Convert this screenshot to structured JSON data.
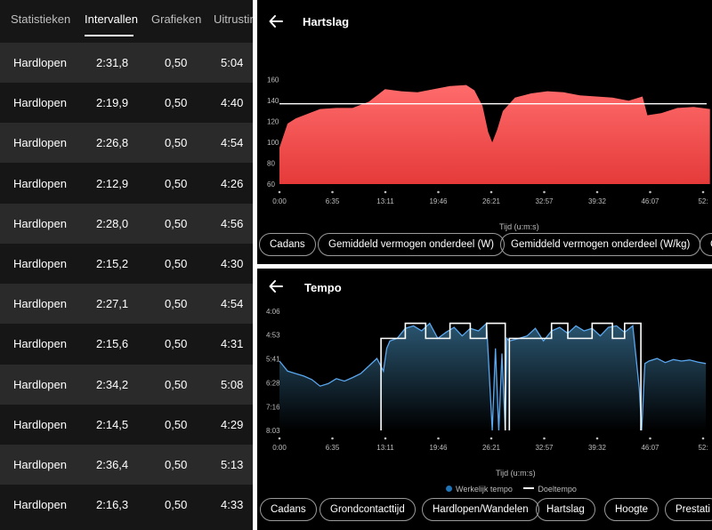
{
  "left_panel": {
    "tabs": [
      {
        "label": "Statistieken",
        "active": false
      },
      {
        "label": "Intervallen",
        "active": true
      },
      {
        "label": "Grafieken",
        "active": false
      },
      {
        "label": "Uitrustin",
        "active": false
      }
    ],
    "rows": [
      {
        "activity": "Hardlopen",
        "time": "2:31,8",
        "distance": "0,50",
        "pace": "5:04"
      },
      {
        "activity": "Hardlopen",
        "time": "2:19,9",
        "distance": "0,50",
        "pace": "4:40"
      },
      {
        "activity": "Hardlopen",
        "time": "2:26,8",
        "distance": "0,50",
        "pace": "4:54"
      },
      {
        "activity": "Hardlopen",
        "time": "2:12,9",
        "distance": "0,50",
        "pace": "4:26"
      },
      {
        "activity": "Hardlopen",
        "time": "2:28,0",
        "distance": "0,50",
        "pace": "4:56"
      },
      {
        "activity": "Hardlopen",
        "time": "2:15,2",
        "distance": "0,50",
        "pace": "4:30"
      },
      {
        "activity": "Hardlopen",
        "time": "2:27,1",
        "distance": "0,50",
        "pace": "4:54"
      },
      {
        "activity": "Hardlopen",
        "time": "2:15,6",
        "distance": "0,50",
        "pace": "4:31"
      },
      {
        "activity": "Hardlopen",
        "time": "2:34,2",
        "distance": "0,50",
        "pace": "5:08"
      },
      {
        "activity": "Hardlopen",
        "time": "2:14,5",
        "distance": "0,50",
        "pace": "4:29"
      },
      {
        "activity": "Hardlopen",
        "time": "2:36,4",
        "distance": "0,50",
        "pace": "5:13"
      },
      {
        "activity": "Hardlopen",
        "time": "2:16,3",
        "distance": "0,50",
        "pace": "4:33"
      }
    ]
  },
  "heart_panel": {
    "title": "Hartslag",
    "chips": [
      "Cadans",
      "Gemiddeld vermogen onderdeel (W)",
      "Gemiddeld vermogen onderdeel (W/kg)",
      "G"
    ]
  },
  "tempo_panel": {
    "title": "Tempo",
    "chips": [
      "Cadans",
      "Grondcontacttijd",
      "Hardlopen/Wandelen",
      "Hartslag",
      "Hoogte",
      "Prestati"
    ]
  },
  "colors": {
    "heart_fill": "#e53a3a",
    "heart_top": "#ff6b6b",
    "pace_line": "#5aa7ef",
    "target_line": "#ffffff",
    "row_alt": "#2a2a2a",
    "row_base": "#161616"
  },
  "chart_data": [
    {
      "type": "area",
      "xlabel": "Tijd (u:m:s)",
      "ylabel": "",
      "x_ticks": [
        "0:00",
        "6:35",
        "13:11",
        "19:46",
        "26:21",
        "32:57",
        "39:32",
        "46:07",
        "52:"
      ],
      "y_ticks": [
        "60",
        "80",
        "100",
        "120",
        "140",
        "160"
      ],
      "ylim": [
        60,
        170
      ],
      "reference_line": 137,
      "x_minutes": [
        0,
        1,
        2,
        3,
        5,
        7,
        9,
        11,
        13,
        15,
        17,
        19,
        21,
        23,
        24,
        25,
        25.7,
        26.2,
        26.8,
        27.5,
        29,
        31,
        33,
        35,
        37,
        39,
        41,
        43,
        44.7,
        45.3,
        47,
        49,
        51,
        53
      ],
      "series": [
        {
          "values": [
            95,
            118,
            123,
            126,
            132,
            133,
            133,
            139,
            151,
            149,
            148,
            151,
            154,
            155,
            150,
            135,
            110,
            100,
            112,
            130,
            143,
            147,
            149,
            148,
            145,
            144,
            143,
            140,
            144,
            126,
            128,
            133,
            134,
            132
          ]
        }
      ]
    },
    {
      "type": "line",
      "xlabel": "Tijd (u:m:s)",
      "ylabel": "",
      "x_ticks": [
        "0:00",
        "6:35",
        "13:11",
        "19:46",
        "26:21",
        "32:57",
        "39:32",
        "46:07",
        "52:"
      ],
      "y_ticks": [
        "4:06",
        "4:53",
        "5:41",
        "6:28",
        "7:16",
        "8:03"
      ],
      "y_reversed": true,
      "legend": [
        "Werkelijk tempo",
        "Doeltempo"
      ],
      "series": [
        {
          "name": "Werkelijk tempo",
          "x_minutes": [
            0,
            1,
            2,
            3,
            4,
            5,
            6,
            7,
            8,
            9,
            10,
            11,
            12,
            12.8,
            13.2,
            13.6,
            14.5,
            15.5,
            16.5,
            17.5,
            18.5,
            19.5,
            20.5,
            21.5,
            22.5,
            23.5,
            24.5,
            25.5,
            26.2,
            26.6,
            27,
            27.4,
            27.8,
            28,
            28.3,
            29.5,
            30.5,
            31.5,
            32.5,
            33.5,
            34.5,
            35.5,
            36.5,
            37.5,
            38.5,
            39.5,
            40.5,
            41.5,
            42.5,
            43.5,
            44.3,
            44.6,
            45,
            45.5,
            46.5,
            47.5,
            48.5,
            49.5,
            50.5,
            51.5,
            52.5
          ],
          "values": [
            "5:45",
            "6:05",
            "6:10",
            "6:15",
            "6:22",
            "6:35",
            "6:30",
            "6:20",
            "6:25",
            "6:18",
            "6:10",
            "5:55",
            "5:40",
            "6:05",
            "5:20",
            "5:05",
            "5:00",
            "4:40",
            "4:35",
            "4:45",
            "4:30",
            "5:00",
            "4:48",
            "4:38",
            "4:55",
            "4:40",
            "4:45",
            "4:30",
            "8:03",
            "5:20",
            "8:03",
            "5:30",
            "8:03",
            "5:00",
            "5:05",
            "5:00",
            "4:55",
            "4:40",
            "5:05",
            "4:45",
            "4:38",
            "4:50",
            "4:35",
            "4:45",
            "4:40",
            "4:55",
            "4:38",
            "4:35",
            "4:48",
            "4:35",
            "6:40",
            "8:03",
            "5:50",
            "5:45",
            "5:40",
            "5:48",
            "5:42",
            "5:45",
            "5:43",
            "5:47",
            "5:50"
          ]
        },
        {
          "name": "Doeltempo",
          "steps": [
            {
              "from": 0,
              "to": 12.5,
              "value": null
            },
            {
              "from": 12.5,
              "to": 15.5,
              "value": "5:00"
            },
            {
              "from": 15.5,
              "to": 18,
              "value": "4:30"
            },
            {
              "from": 18,
              "to": 21,
              "value": "5:00"
            },
            {
              "from": 21,
              "to": 23.5,
              "value": "4:30"
            },
            {
              "from": 23.5,
              "to": 25.5,
              "value": "5:00"
            },
            {
              "from": 25.5,
              "to": 27.8,
              "value": "4:30"
            },
            {
              "from": 27.8,
              "to": 28.3,
              "value": null
            },
            {
              "from": 28.3,
              "to": 33.5,
              "value": "5:00"
            },
            {
              "from": 33.5,
              "to": 35.5,
              "value": "4:30"
            },
            {
              "from": 35.5,
              "to": 38.5,
              "value": "5:00"
            },
            {
              "from": 38.5,
              "to": 41,
              "value": "4:30"
            },
            {
              "from": 41,
              "to": 42.5,
              "value": "5:00"
            },
            {
              "from": 42.5,
              "to": 44.5,
              "value": "4:30"
            }
          ]
        }
      ]
    }
  ]
}
